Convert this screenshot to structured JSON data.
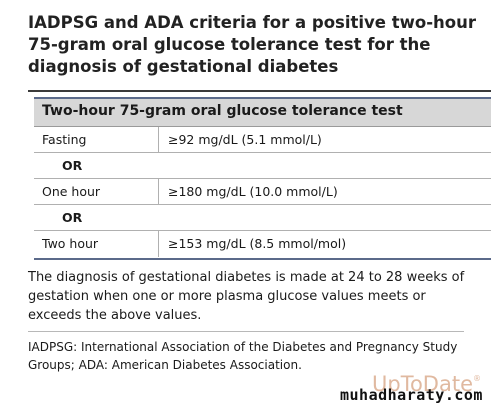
{
  "title": "IADPSG and ADA criteria for a positive two-hour 75-gram oral glucose tolerance test for the diagnosis of gestational diabetes",
  "table": {
    "header": "Two-hour 75-gram oral glucose tolerance test",
    "rows": [
      {
        "label": "Fasting",
        "value": "≥92 mg/dL (5.1 mmol/L)"
      },
      {
        "label": "OR",
        "value": ""
      },
      {
        "label": "One hour",
        "value": "≥180 mg/dL (10.0 mmol/L)"
      },
      {
        "label": "OR",
        "value": ""
      },
      {
        "label": "Two hour",
        "value": "≥153 mg/dL (8.5 mmol/mol)"
      }
    ]
  },
  "note": "The diagnosis of gestational diabetes is made at 24 to 28 weeks of gestation when one or more plasma glucose values meets or exceeds the above values.",
  "abbreviations": "IADPSG: International Association of the Diabetes and Pregnancy Study Groups; ADA: American Diabetes Association.",
  "logo": "UpToDate",
  "watermark": "muhadharaty.com",
  "colors": {
    "header_bg": "#d7d7d7",
    "table_rule": "#5b6a8a",
    "logo": "#e0b9a0"
  }
}
